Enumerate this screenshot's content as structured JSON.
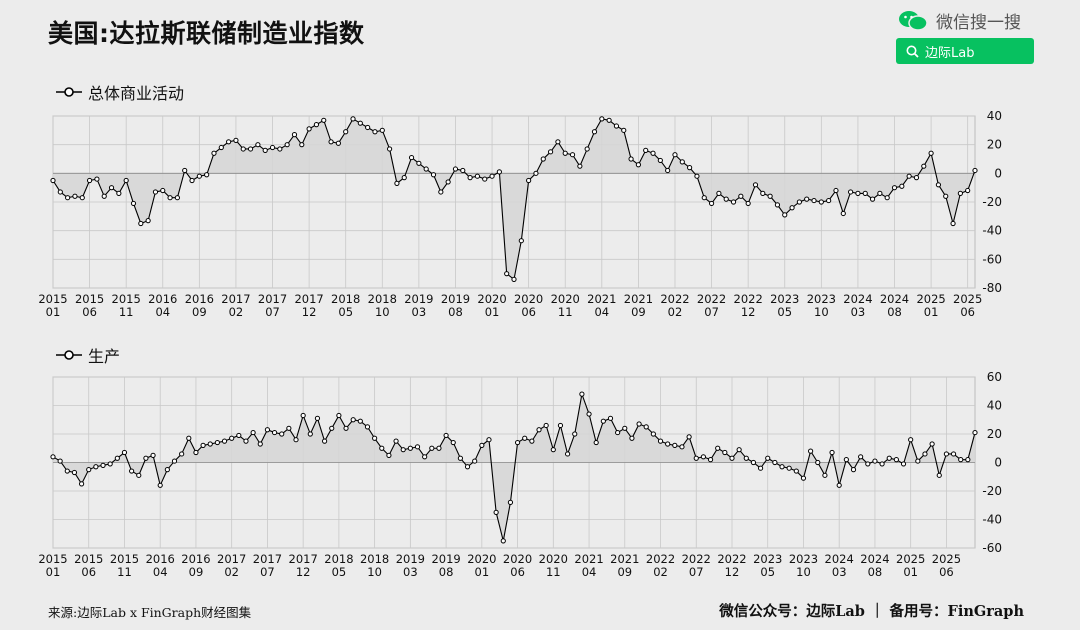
{
  "header": {
    "title": "美国:达拉斯联储制造业指数",
    "wechat_label": "微信搜一搜",
    "search_label": "边际Lab"
  },
  "footer": {
    "source": "来源:边际Lab x FinGraph财经图集",
    "right": "微信公众号：边际Lab ｜ 备用号：FinGraph"
  },
  "colors": {
    "background": "#ececec",
    "line": "#000000",
    "fill": "#d6d6d6",
    "grid": "#c8c8c8",
    "search_green": "#07c160"
  },
  "chart_data": [
    {
      "type": "area",
      "legend": "总体商业活动",
      "grid": true,
      "ylim": [
        -80,
        40
      ],
      "yticks": [
        40,
        20,
        0,
        -20,
        -40,
        -60,
        -80
      ],
      "xtick_labels": [
        [
          "2015",
          "01"
        ],
        [
          "2015",
          "06"
        ],
        [
          "2015",
          "11"
        ],
        [
          "2016",
          "04"
        ],
        [
          "2016",
          "09"
        ],
        [
          "2017",
          "02"
        ],
        [
          "2017",
          "07"
        ],
        [
          "2017",
          "12"
        ],
        [
          "2018",
          "05"
        ],
        [
          "2018",
          "10"
        ],
        [
          "2019",
          "03"
        ],
        [
          "2019",
          "08"
        ],
        [
          "2020",
          "01"
        ],
        [
          "2020",
          "06"
        ],
        [
          "2020",
          "11"
        ],
        [
          "2021",
          "04"
        ],
        [
          "2021",
          "09"
        ],
        [
          "2022",
          "02"
        ],
        [
          "2022",
          "07"
        ],
        [
          "2022",
          "12"
        ],
        [
          "2023",
          "05"
        ],
        [
          "2023",
          "10"
        ],
        [
          "2024",
          "03"
        ],
        [
          "2024",
          "08"
        ],
        [
          "2025",
          "01"
        ],
        [
          "2025",
          "06"
        ]
      ],
      "start": "2015-01",
      "values": [
        -5,
        -13,
        -17,
        -16,
        -17,
        -5,
        -4,
        -16,
        -10,
        -14,
        -5,
        -21,
        -35,
        -33,
        -13,
        -12,
        -17,
        -17,
        2,
        -5,
        -2,
        -1,
        14,
        18,
        22,
        23,
        17,
        17,
        20,
        16,
        18,
        17,
        20,
        27,
        20,
        31,
        34,
        37,
        22,
        21,
        29,
        38,
        35,
        32,
        29,
        30,
        17,
        -7,
        -3,
        11,
        7,
        3,
        -1,
        -13,
        -6,
        3,
        2,
        -3,
        -2,
        -4,
        -2,
        1,
        -70,
        -74,
        -47,
        -5,
        0,
        10,
        15,
        22,
        14,
        13,
        5,
        17,
        29,
        38,
        37,
        33,
        30,
        10,
        6,
        16,
        14,
        9,
        2,
        13,
        8,
        4,
        -2,
        -17,
        -21,
        -14,
        -18,
        -20,
        -16,
        -21,
        -8,
        -14,
        -16,
        -22,
        -29,
        -24,
        -20,
        -18,
        -19,
        -20,
        -19,
        -12,
        -28,
        -13,
        -14,
        -14,
        -18,
        -14,
        -17,
        -10,
        -9,
        -2,
        -3,
        5,
        14,
        -8,
        -16,
        -35,
        -14,
        -12,
        2
      ]
    },
    {
      "type": "area",
      "legend": "生产",
      "grid": true,
      "ylim": [
        -60,
        60
      ],
      "yticks": [
        60,
        40,
        20,
        0,
        -20,
        -40,
        -60
      ],
      "xtick_labels": [
        [
          "2015",
          "01"
        ],
        [
          "2015",
          "06"
        ],
        [
          "2015",
          "11"
        ],
        [
          "2016",
          "04"
        ],
        [
          "2016",
          "09"
        ],
        [
          "2017",
          "02"
        ],
        [
          "2017",
          "07"
        ],
        [
          "2017",
          "12"
        ],
        [
          "2018",
          "05"
        ],
        [
          "2018",
          "10"
        ],
        [
          "2019",
          "03"
        ],
        [
          "2019",
          "08"
        ],
        [
          "2020",
          "01"
        ],
        [
          "2020",
          "06"
        ],
        [
          "2020",
          "11"
        ],
        [
          "2021",
          "04"
        ],
        [
          "2021",
          "09"
        ],
        [
          "2022",
          "02"
        ],
        [
          "2022",
          "07"
        ],
        [
          "2022",
          "12"
        ],
        [
          "2023",
          "05"
        ],
        [
          "2023",
          "10"
        ],
        [
          "2024",
          "03"
        ],
        [
          "2024",
          "08"
        ],
        [
          "2025",
          "01"
        ],
        [
          "2025",
          "06"
        ]
      ],
      "start": "2015-01",
      "values": [
        4,
        1,
        -6,
        -7,
        -15,
        -5,
        -3,
        -2,
        -1,
        3,
        7,
        -6,
        -9,
        3,
        5,
        -16,
        -5,
        1,
        6,
        17,
        7,
        12,
        13,
        14,
        15,
        17,
        19,
        15,
        21,
        13,
        23,
        21,
        20,
        24,
        16,
        33,
        20,
        31,
        15,
        24,
        33,
        24,
        30,
        29,
        25,
        17,
        10,
        5,
        15,
        9,
        10,
        11,
        4,
        10,
        10,
        19,
        14,
        3,
        -3,
        1,
        12,
        16,
        -35,
        -55,
        -28,
        14,
        17,
        15,
        23,
        26,
        9,
        26,
        6,
        20,
        48,
        34,
        14,
        29,
        31,
        21,
        24,
        17,
        27,
        25,
        20,
        15,
        13,
        12,
        11,
        18,
        3,
        4,
        2,
        10,
        7,
        3,
        9,
        3,
        0,
        -4,
        3,
        0,
        -3,
        -4,
        -6,
        -11,
        8,
        0,
        -9,
        7,
        -16,
        2,
        -5,
        4,
        -1,
        1,
        -1,
        3,
        2,
        -1,
        16,
        1,
        6,
        13,
        -9,
        6,
        6,
        2,
        2,
        21
      ]
    }
  ]
}
